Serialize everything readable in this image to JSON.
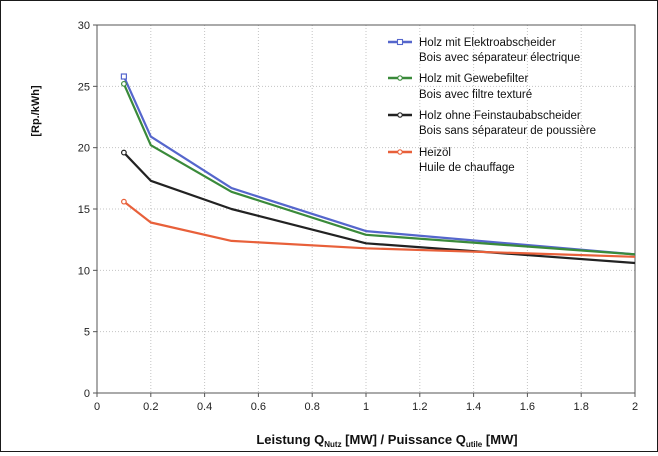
{
  "chart_data": {
    "type": "line",
    "ylabel": "[Rp./kWh]",
    "xlabel": {
      "part1": "Leistung Q",
      "sub1": "Nutz",
      "part2": " [MW]  /  Puissance Q",
      "sub2": "utile",
      "part3": " [MW]"
    },
    "xlim": [
      0,
      2
    ],
    "ylim": [
      0,
      30
    ],
    "x_ticks": [
      "0",
      "0.2",
      "0.4",
      "0.6",
      "0.8",
      "1",
      "1.2",
      "1.4",
      "1.6",
      "1.8",
      "2"
    ],
    "y_ticks": [
      "0",
      "5",
      "10",
      "15",
      "20",
      "25",
      "30"
    ],
    "grid": true,
    "legend_position": "top-right",
    "series": [
      {
        "name": [
          "Holz mit Elektroabscheider",
          "Bois avec séparateur électrique"
        ],
        "color": "#5566cc",
        "marker": "square",
        "x": [
          0.1,
          0.2,
          0.5,
          1,
          2
        ],
        "y": [
          25.8,
          20.9,
          16.7,
          13.2,
          11.3
        ]
      },
      {
        "name": [
          "Holz mit Gewebefilter",
          "Bois avec filtre texturé"
        ],
        "color": "#3a8a3a",
        "marker": "circle",
        "x": [
          0.1,
          0.2,
          0.5,
          1,
          2
        ],
        "y": [
          25.2,
          20.2,
          16.4,
          12.9,
          11.3
        ]
      },
      {
        "name": [
          "Holz ohne Feinstaubabscheider",
          "Bois sans séparateur de poussière"
        ],
        "color": "#222222",
        "marker": "circle",
        "x": [
          0.1,
          0.2,
          0.5,
          1,
          2
        ],
        "y": [
          19.6,
          17.3,
          15.0,
          12.2,
          10.6
        ]
      },
      {
        "name": [
          "Heizöl",
          "Huile de chauffage"
        ],
        "color": "#e8603a",
        "marker": "circle",
        "x": [
          0.1,
          0.2,
          0.5,
          1,
          2
        ],
        "y": [
          15.6,
          13.9,
          12.4,
          11.8,
          11.1
        ]
      }
    ]
  }
}
